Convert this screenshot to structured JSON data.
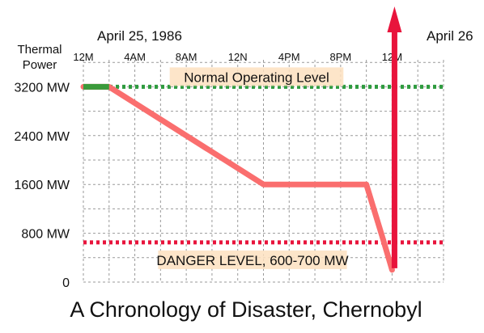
{
  "chart_data": {
    "type": "line",
    "title": "A Chronology of Disaster, Chernobyl",
    "ylabel": "Thermal Power",
    "date_start": "April 25, 1986",
    "date_end": "April 26",
    "x_ticks": [
      "12M",
      "4AM",
      "8AM",
      "12N",
      "4PM",
      "8PM",
      "12M"
    ],
    "y_ticks": [
      "0",
      "800 MW",
      "1600 MW",
      "2400 MW",
      "3200 MW"
    ],
    "x_range_hours": [
      0,
      28
    ],
    "ylim": [
      0,
      3500
    ],
    "grid": true,
    "series": [
      {
        "name": "",
        "color": "#fa6e6e",
        "points": [
          [
            0,
            3200
          ],
          [
            2,
            3200
          ],
          [
            14,
            1600
          ],
          [
            22,
            1600
          ],
          [
            23.3,
            700
          ],
          [
            24,
            200
          ]
        ]
      }
    ],
    "early_segment": {
      "color": "#3a9a3a",
      "points": [
        [
          0,
          3200
        ],
        [
          2,
          3200
        ]
      ]
    },
    "spike": {
      "color": "#e8143c",
      "x_hour": 24,
      "from": 200,
      "to": 3500,
      "label": "April 26"
    },
    "reference_lines": [
      {
        "label": "Normal Operating Level",
        "value": 3200,
        "color": "#2e9b3f",
        "style": "dotted"
      },
      {
        "label": "DANGER LEVEL, 600-700 MW",
        "value": 650,
        "color": "#e8143c",
        "style": "dotted"
      }
    ],
    "label_bg": "#fde0c0"
  }
}
